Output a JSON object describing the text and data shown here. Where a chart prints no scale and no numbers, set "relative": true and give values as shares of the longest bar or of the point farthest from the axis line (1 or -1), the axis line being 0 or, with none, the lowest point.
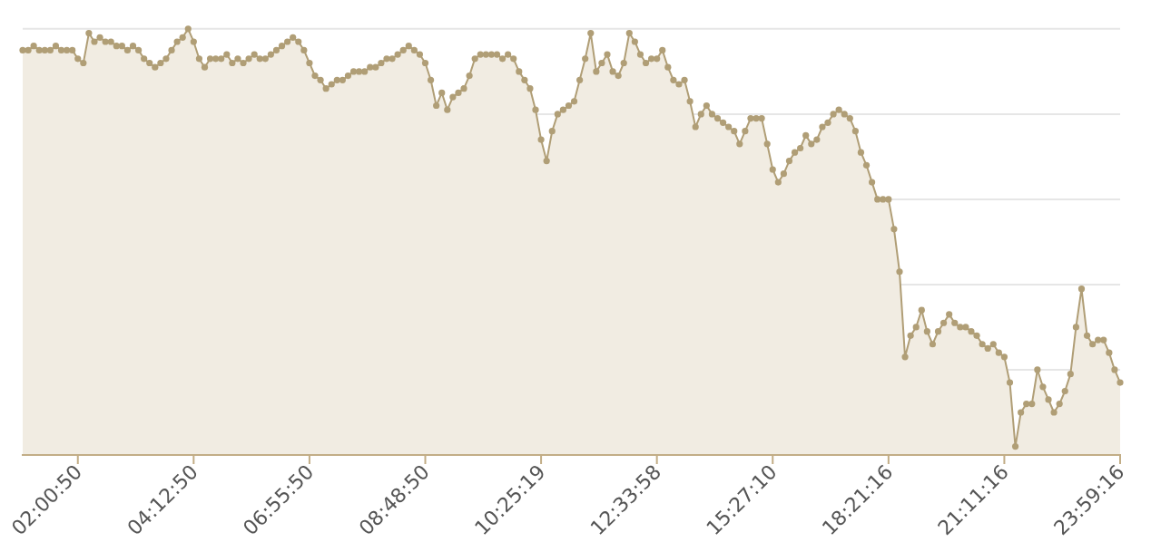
{
  "chart_data": {
    "type": "area",
    "relative": true,
    "grid": "y",
    "marker": "circle",
    "line_style": "solid",
    "categories": [
      null,
      null,
      null,
      null,
      null,
      null,
      null,
      null,
      null,
      null,
      "02:00:50",
      null,
      null,
      null,
      null,
      null,
      null,
      null,
      null,
      null,
      null,
      null,
      null,
      null,
      null,
      null,
      null,
      null,
      null,
      null,
      null,
      "04:12:50",
      null,
      null,
      null,
      null,
      null,
      null,
      null,
      null,
      null,
      null,
      null,
      null,
      null,
      null,
      null,
      null,
      null,
      null,
      null,
      null,
      "06:55:50",
      null,
      null,
      null,
      null,
      null,
      null,
      null,
      null,
      null,
      null,
      null,
      null,
      null,
      null,
      null,
      null,
      null,
      null,
      null,
      null,
      "08:48:50",
      null,
      null,
      null,
      null,
      null,
      null,
      null,
      null,
      null,
      null,
      null,
      null,
      null,
      null,
      null,
      null,
      null,
      null,
      null,
      null,
      "10:25:19",
      null,
      null,
      null,
      null,
      null,
      null,
      null,
      null,
      null,
      null,
      null,
      null,
      null,
      null,
      null,
      null,
      null,
      null,
      null,
      null,
      "12:33:58",
      null,
      null,
      null,
      null,
      null,
      null,
      null,
      null,
      null,
      null,
      null,
      null,
      null,
      null,
      null,
      null,
      null,
      null,
      null,
      null,
      "15:27:10",
      null,
      null,
      null,
      null,
      null,
      null,
      null,
      null,
      null,
      null,
      null,
      null,
      null,
      null,
      null,
      null,
      null,
      null,
      null,
      null,
      "18:21:16",
      null,
      null,
      null,
      null,
      null,
      null,
      null,
      null,
      null,
      null,
      null,
      null,
      null,
      null,
      null,
      null,
      null,
      null,
      null,
      null,
      "21:11:16",
      null,
      null,
      null,
      null,
      null,
      null,
      null,
      null,
      null,
      null,
      null,
      null,
      null,
      null,
      null,
      null,
      null,
      null,
      null,
      null,
      "23:59:16"
    ],
    "series": [
      {
        "color": "#b09e76",
        "values": [
          0.95,
          0.95,
          0.96,
          0.95,
          0.95,
          0.95,
          0.96,
          0.95,
          0.95,
          0.95,
          0.93,
          0.92,
          0.99,
          0.97,
          0.98,
          0.97,
          0.97,
          0.96,
          0.96,
          0.95,
          0.96,
          0.95,
          0.93,
          0.92,
          0.91,
          0.92,
          0.93,
          0.95,
          0.97,
          0.98,
          1,
          0.97,
          0.93,
          0.91,
          0.93,
          0.93,
          0.93,
          0.94,
          0.92,
          0.93,
          0.92,
          0.93,
          0.94,
          0.93,
          0.93,
          0.94,
          0.95,
          0.96,
          0.97,
          0.98,
          0.97,
          0.95,
          0.92,
          0.89,
          0.88,
          0.86,
          0.87,
          0.88,
          0.88,
          0.89,
          0.9,
          0.9,
          0.9,
          0.91,
          0.91,
          0.92,
          0.93,
          0.93,
          0.94,
          0.95,
          0.96,
          0.95,
          0.94,
          0.92,
          0.88,
          0.82,
          0.85,
          0.81,
          0.84,
          0.85,
          0.86,
          0.89,
          0.93,
          0.94,
          0.94,
          0.94,
          0.94,
          0.93,
          0.94,
          0.93,
          0.9,
          0.88,
          0.86,
          0.81,
          0.74,
          0.69,
          0.76,
          0.8,
          0.81,
          0.82,
          0.83,
          0.88,
          0.93,
          0.99,
          0.9,
          0.92,
          0.94,
          0.9,
          0.89,
          0.92,
          0.99,
          0.97,
          0.94,
          0.92,
          0.93,
          0.93,
          0.95,
          0.91,
          0.88,
          0.87,
          0.88,
          0.83,
          0.77,
          0.8,
          0.82,
          0.8,
          0.79,
          0.78,
          0.77,
          0.76,
          0.73,
          0.76,
          0.79,
          0.79,
          0.79,
          0.73,
          0.67,
          0.64,
          0.66,
          0.69,
          0.71,
          0.72,
          0.75,
          0.73,
          0.74,
          0.77,
          0.78,
          0.8,
          0.81,
          0.8,
          0.79,
          0.76,
          0.71,
          0.68,
          0.64,
          0.6,
          0.6,
          0.6,
          0.53,
          0.43,
          0.23,
          0.28,
          0.3,
          0.34,
          0.29,
          0.26,
          0.29,
          0.31,
          0.33,
          0.31,
          0.3,
          0.3,
          0.29,
          0.28,
          0.26,
          0.25,
          0.26,
          0.24,
          0.23,
          0.17,
          0.02,
          0.1,
          0.12,
          0.12,
          0.2,
          0.16,
          0.13,
          0.1,
          0.12,
          0.15,
          0.19,
          0.3,
          0.39,
          0.28,
          0.26,
          0.27,
          0.27,
          0.24,
          0.2,
          0.17
        ]
      }
    ]
  }
}
